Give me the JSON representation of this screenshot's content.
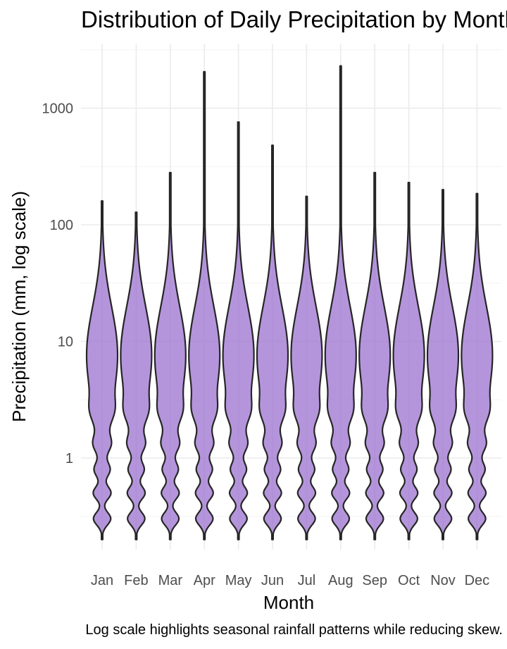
{
  "chart_data": {
    "type": "violin",
    "title": "Distribution of Daily Precipitation by Month",
    "xlabel": "Month",
    "ylabel": "Precipitation (mm, log scale)",
    "caption": "Log scale highlights seasonal rainfall patterns while reducing skew.",
    "y_scale": "log10",
    "ylim": [
      0.2,
      2300
    ],
    "y_ticks": [
      {
        "value": 1,
        "label": "1"
      },
      {
        "value": 10,
        "label": "10"
      },
      {
        "value": 100,
        "label": "100"
      },
      {
        "value": 1000,
        "label": "1000"
      }
    ],
    "grid": true,
    "categories": [
      "Jan",
      "Feb",
      "Mar",
      "Apr",
      "May",
      "Jun",
      "Jul",
      "Aug",
      "Sep",
      "Oct",
      "Nov",
      "Dec"
    ],
    "series": [
      {
        "month": "Jan",
        "min": 0.2,
        "max": 160
      },
      {
        "month": "Feb",
        "min": 0.2,
        "max": 128
      },
      {
        "month": "Mar",
        "min": 0.2,
        "max": 280
      },
      {
        "month": "Apr",
        "min": 0.2,
        "max": 2050
      },
      {
        "month": "May",
        "min": 0.2,
        "max": 760
      },
      {
        "month": "Jun",
        "min": 0.2,
        "max": 480
      },
      {
        "month": "Jul",
        "min": 0.2,
        "max": 175
      },
      {
        "month": "Aug",
        "min": 0.2,
        "max": 2300
      },
      {
        "month": "Sep",
        "min": 0.2,
        "max": 280
      },
      {
        "month": "Oct",
        "min": 0.2,
        "max": 230
      },
      {
        "month": "Nov",
        "min": 0.2,
        "max": 200
      },
      {
        "month": "Dec",
        "min": 0.2,
        "max": 185
      }
    ],
    "colors": {
      "fill": "#9b72cf",
      "stroke": "#262626",
      "grid_major": "#ebebeb",
      "grid_minor": "#f3f3f3"
    }
  }
}
